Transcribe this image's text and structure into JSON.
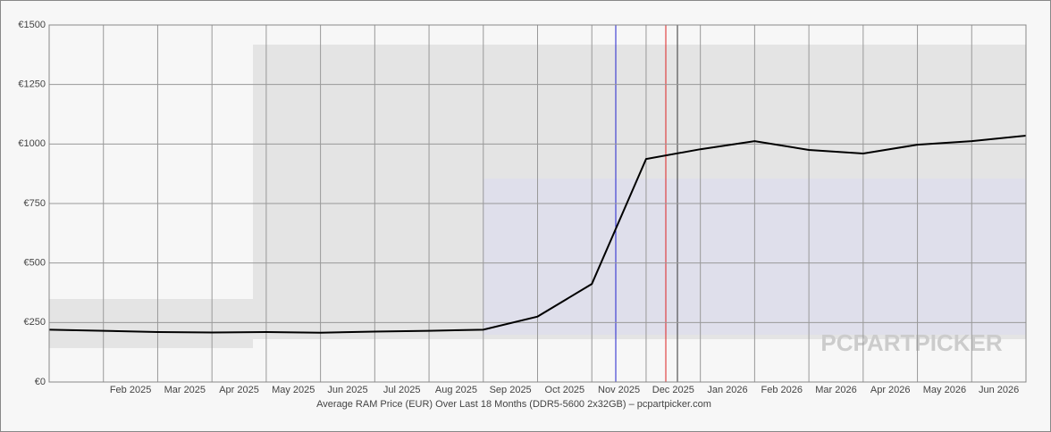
{
  "chart_data": {
    "type": "line",
    "title": "Average RAM Price (EUR) Over Last 18 Months (DDR5-5600 2x32GB) – pcpartpicker.com",
    "watermark": "PCPARTPICKER",
    "x": [
      "2025-01",
      "2025-02",
      "2025-03",
      "2025-04",
      "2025-05",
      "2025-06",
      "2025-07",
      "2025-08",
      "2025-09",
      "2025-10",
      "2025-11",
      "2025-12",
      "2026-01",
      "2026-02",
      "2026-03",
      "2026-04",
      "2026-05",
      "2026-06",
      "2026-07"
    ],
    "series": [
      {
        "name": "Average price",
        "color": "#000000",
        "values": [
          220,
          215,
          210,
          208,
          210,
          207,
          212,
          215,
          220,
          275,
          412,
          937,
          978,
          1012,
          975,
          960,
          997,
          1012,
          1035
        ]
      }
    ],
    "xlim": [
      "2025-01",
      "2026-07"
    ],
    "xticks": [
      {
        "value": "2025-02",
        "label": "Feb 2025"
      },
      {
        "value": "2025-03",
        "label": "Mar 2025"
      },
      {
        "value": "2025-04",
        "label": "Apr 2025"
      },
      {
        "value": "2025-05",
        "label": "May 2025"
      },
      {
        "value": "2025-06",
        "label": "Jun 2025"
      },
      {
        "value": "2025-07",
        "label": "Jul 2025"
      },
      {
        "value": "2025-08",
        "label": "Aug 2025"
      },
      {
        "value": "2025-09",
        "label": "Sep 2025"
      },
      {
        "value": "2025-10",
        "label": "Oct 2025"
      },
      {
        "value": "2025-11",
        "label": "Nov 2025"
      },
      {
        "value": "2025-12",
        "label": "Dec 2025"
      },
      {
        "value": "2026-01",
        "label": "Jan 2026"
      },
      {
        "value": "2026-02",
        "label": "Feb 2026"
      },
      {
        "value": "2026-03",
        "label": "Mar 2026"
      },
      {
        "value": "2026-04",
        "label": "Apr 2026"
      },
      {
        "value": "2026-05",
        "label": "May 2026"
      },
      {
        "value": "2026-06",
        "label": "Jun 2026"
      }
    ],
    "ylim": [
      0,
      1500
    ],
    "yticks": [
      {
        "value": 0,
        "label": "€0"
      },
      {
        "value": 250,
        "label": "€250"
      },
      {
        "value": 500,
        "label": "€500"
      },
      {
        "value": 750,
        "label": "€750"
      },
      {
        "value": 1000,
        "label": "€1000"
      },
      {
        "value": 1250,
        "label": "€1250"
      },
      {
        "value": 1500,
        "label": "€1500"
      }
    ],
    "grid": true
  }
}
